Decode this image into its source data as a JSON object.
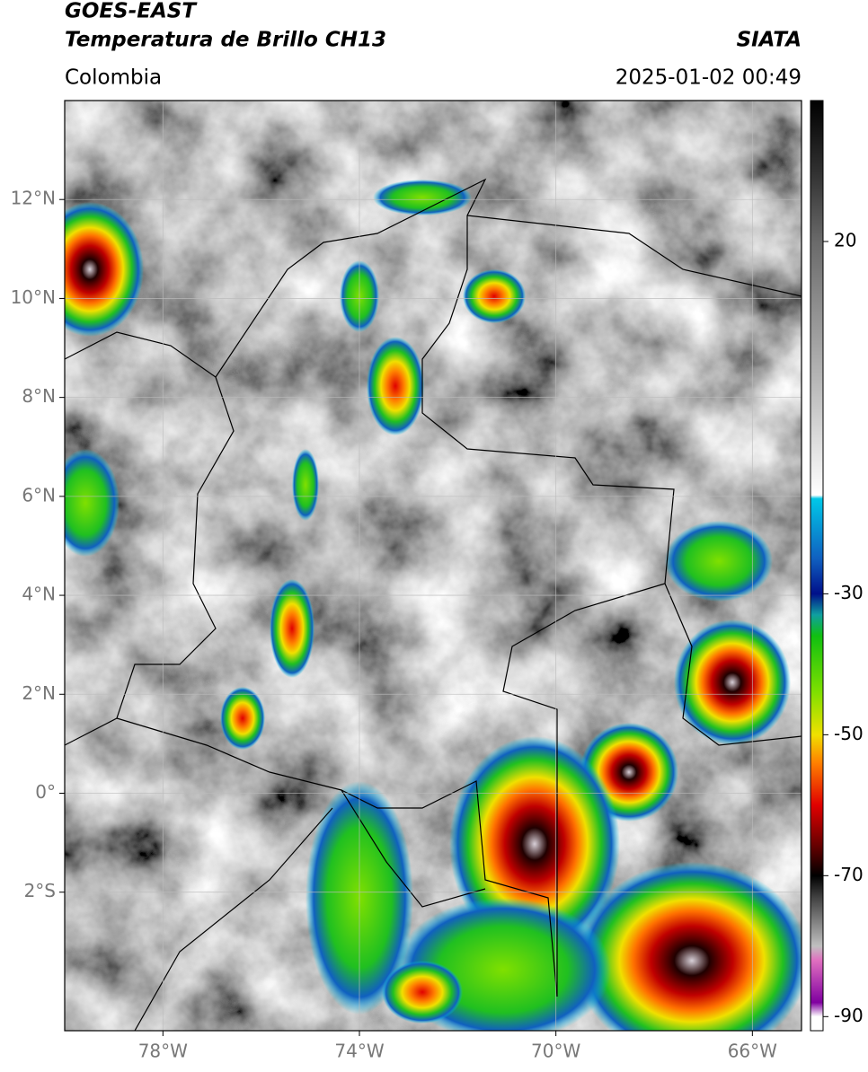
{
  "header": {
    "title": "GOES-EAST",
    "subtitle": "Temperatura de Brillo CH13",
    "source": "SIATA",
    "region": "Colombia",
    "datetime": "2025-01-02 00:49"
  },
  "map": {
    "lonlim": [
      -80,
      -65
    ],
    "latlim": [
      -4.8,
      14
    ],
    "lonticks": [
      {
        "value": -78,
        "label": "78°W"
      },
      {
        "value": -74,
        "label": "74°W"
      },
      {
        "value": -70,
        "label": "70°W"
      },
      {
        "value": -66,
        "label": "66°W"
      }
    ],
    "latticks": [
      {
        "value": 12,
        "label": "12°N"
      },
      {
        "value": 10,
        "label": "10°N"
      },
      {
        "value": 8,
        "label": "8°N"
      },
      {
        "value": 6,
        "label": "6°N"
      },
      {
        "value": 4,
        "label": "4°N"
      },
      {
        "value": 2,
        "label": "2°N"
      },
      {
        "value": 0,
        "label": "0°"
      },
      {
        "value": -2,
        "label": "2°S"
      }
    ],
    "grid": true
  },
  "colorbar": {
    "clim": [
      -92,
      40
    ],
    "ticks": [
      20,
      -30,
      -50,
      -70,
      -90
    ],
    "colormap": [
      {
        "value": 40,
        "color": "#000000"
      },
      {
        "value": 30,
        "color": "#303030"
      },
      {
        "value": 20,
        "color": "#6a6a6a"
      },
      {
        "value": 0,
        "color": "#b8b8b8"
      },
      {
        "value": -16,
        "color": "#ffffff"
      },
      {
        "value": -16.5,
        "color": "#00c8e8"
      },
      {
        "value": -25,
        "color": "#1060c0"
      },
      {
        "value": -30,
        "color": "#00108a"
      },
      {
        "value": -33,
        "color": "#10a0a0"
      },
      {
        "value": -36,
        "color": "#10c010"
      },
      {
        "value": -44,
        "color": "#80e000"
      },
      {
        "value": -50,
        "color": "#f0e000"
      },
      {
        "value": -54,
        "color": "#ff8000"
      },
      {
        "value": -60,
        "color": "#e00000"
      },
      {
        "value": -66,
        "color": "#600000"
      },
      {
        "value": -70,
        "color": "#000000"
      },
      {
        "value": -73,
        "color": "#404040"
      },
      {
        "value": -80,
        "color": "#c0c0c0"
      },
      {
        "value": -82,
        "color": "#e070c0"
      },
      {
        "value": -88,
        "color": "#8000a0"
      },
      {
        "value": -90,
        "color": "#ffffff"
      },
      {
        "value": -92,
        "color": "#ffffff"
      }
    ]
  }
}
